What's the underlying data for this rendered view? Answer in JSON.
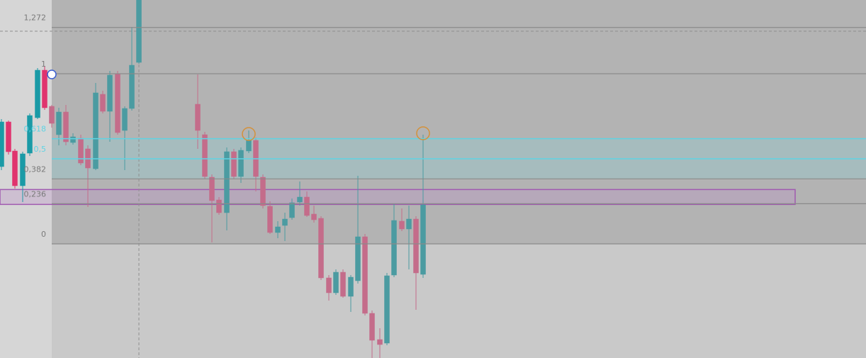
{
  "levels": [
    {
      "value": 1.272,
      "label": "1,272"
    },
    {
      "value": 1,
      "label": "1"
    },
    {
      "value": 0.618,
      "label": "0,618"
    },
    {
      "value": 0.5,
      "label": "0,5"
    },
    {
      "value": 0.382,
      "label": "0,382"
    },
    {
      "value": 0.236,
      "label": "0,236"
    },
    {
      "value": 0,
      "label": "0"
    }
  ]
}
